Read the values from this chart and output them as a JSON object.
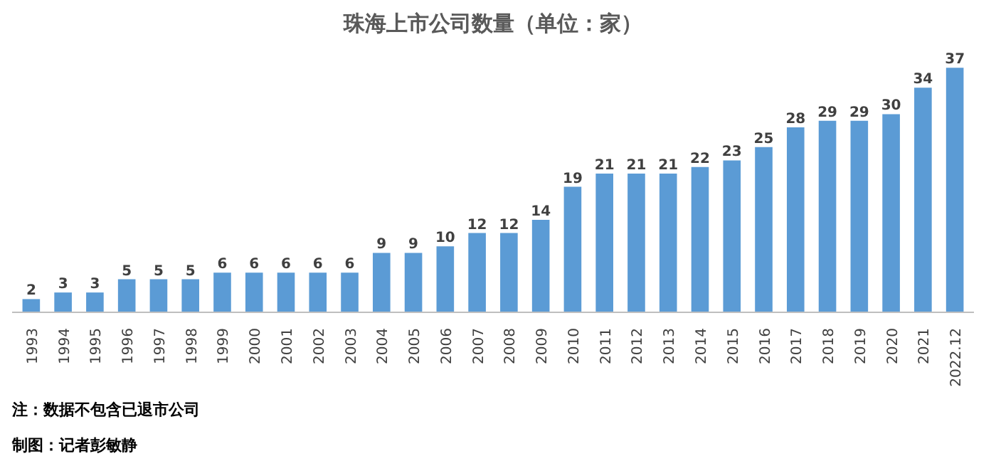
{
  "chart_data": {
    "type": "bar",
    "title": "珠海上市公司数量（单位：家）",
    "categories": [
      "1993",
      "1994",
      "1995",
      "1996",
      "1997",
      "1998",
      "1999",
      "2000",
      "2001",
      "2002",
      "2003",
      "2004",
      "2005",
      "2006",
      "2007",
      "2008",
      "2009",
      "2010",
      "2011",
      "2012",
      "2013",
      "2014",
      "2015",
      "2016",
      "2017",
      "2018",
      "2019",
      "2020",
      "2021",
      "2022.12"
    ],
    "values": [
      2,
      3,
      3,
      5,
      5,
      5,
      6,
      6,
      6,
      6,
      6,
      9,
      9,
      10,
      12,
      12,
      14,
      19,
      21,
      21,
      21,
      22,
      23,
      25,
      28,
      29,
      29,
      30,
      34,
      37
    ],
    "color": "#5b9bd5",
    "data_labels": true,
    "grid": false,
    "annotations": [
      "注：数据不包含已退市公司",
      "制图：记者彭敏静"
    ]
  }
}
